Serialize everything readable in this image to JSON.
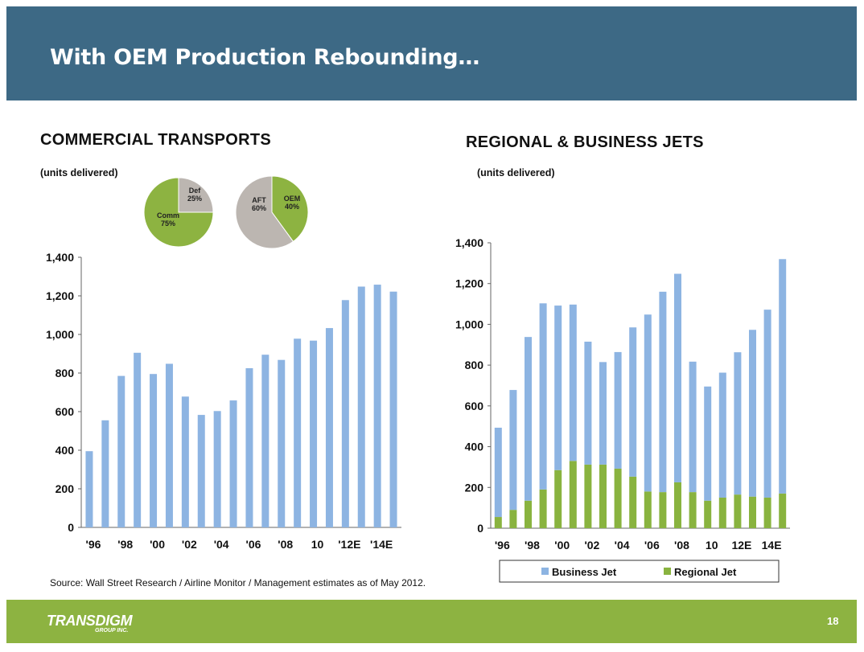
{
  "title": "With OEM Production Rebounding…",
  "footer": {
    "source": "Source:  Wall Street Research / Airline Monitor / Management estimates as of May 2012.",
    "logo": "TRANSDIGM",
    "logo_sub": "GROUP INC.",
    "page_number": "18"
  },
  "colors": {
    "header": "#3d6985",
    "footer": "#8db341",
    "blue_bar": "#8db4e2",
    "green_bar": "#89b33f",
    "pie_gray": "#bcb6b1",
    "pie_green": "#8db341"
  },
  "commercial": {
    "section_title": "COMMERCIAL TRANSPORTS",
    "units": "(units delivered)"
  },
  "regional": {
    "section_title": "REGIONAL & BUSINESS JETS",
    "units": "(units delivered)"
  },
  "chart_data": [
    {
      "type": "pie",
      "slices": [
        {
          "label": "Def",
          "pct_label": "25%",
          "value": 25
        },
        {
          "label": "Comm",
          "pct_label": "75%",
          "value": 75
        }
      ]
    },
    {
      "type": "pie",
      "slices": [
        {
          "label": "OEM",
          "pct_label": "40%",
          "value": 40
        },
        {
          "label": "AFT",
          "pct_label": "60%",
          "value": 60
        }
      ]
    },
    {
      "type": "bar",
      "title": "COMMERCIAL TRANSPORTS",
      "ylabel": "(units delivered)",
      "ylim": [
        0,
        1400
      ],
      "yticks": [
        0,
        200,
        400,
        600,
        800,
        1000,
        1200,
        1400
      ],
      "ytick_labels": [
        "0",
        "200",
        "400",
        "600",
        "800",
        "1,000",
        "1,200",
        "1,400"
      ],
      "categories": [
        "'96",
        "'97",
        "'98",
        "'99",
        "'00",
        "'01",
        "'02",
        "'03",
        "'04",
        "'05",
        "'06",
        "'07",
        "'08",
        "'09",
        "10",
        "'11",
        "'12E",
        "'13E",
        "'14E",
        "'15E"
      ],
      "xtick_labels": [
        "'96",
        "",
        "'98",
        "",
        "'00",
        "",
        "'02",
        "",
        "'04",
        "",
        "'06",
        "",
        "'08",
        "",
        "10",
        "",
        "'12E",
        "",
        "'14E",
        ""
      ],
      "values": [
        395,
        555,
        785,
        905,
        795,
        848,
        678,
        583,
        603,
        658,
        825,
        895,
        868,
        978,
        968,
        1033,
        1178,
        1248,
        1258,
        1222
      ]
    },
    {
      "type": "bar",
      "stacked": true,
      "title": "REGIONAL & BUSINESS JETS",
      "ylabel": "(units delivered)",
      "ylim": [
        0,
        1400
      ],
      "yticks": [
        0,
        200,
        400,
        600,
        800,
        1000,
        1200,
        1400
      ],
      "ytick_labels": [
        "0",
        "200",
        "400",
        "600",
        "800",
        "1,000",
        "1,200",
        "1,400"
      ],
      "categories": [
        "'96",
        "'97",
        "'98",
        "'99",
        "'00",
        "'01",
        "'02",
        "'03",
        "'04",
        "'05",
        "'06",
        "'07",
        "'08",
        "'09",
        "10",
        "'11",
        "12E",
        "'13E",
        "14E",
        "'15E"
      ],
      "xtick_labels": [
        "'96",
        "",
        "'98",
        "",
        "'00",
        "",
        "'02",
        "",
        "'04",
        "",
        "'06",
        "",
        "'08",
        "",
        "10",
        "",
        "12E",
        "",
        "14E",
        ""
      ],
      "series": [
        {
          "name": "Regional Jet",
          "values": [
            55,
            90,
            135,
            190,
            285,
            330,
            312,
            312,
            292,
            253,
            180,
            177,
            225,
            177,
            135,
            150,
            165,
            155,
            150,
            170
          ]
        },
        {
          "name": "Business Jet",
          "values": [
            438,
            588,
            803,
            913,
            807,
            767,
            603,
            503,
            572,
            732,
            868,
            983,
            1023,
            640,
            560,
            613,
            698,
            818,
            922,
            1150
          ]
        }
      ],
      "legend": [
        "Business Jet",
        "Regional Jet"
      ],
      "legend_position": "bottom"
    }
  ]
}
